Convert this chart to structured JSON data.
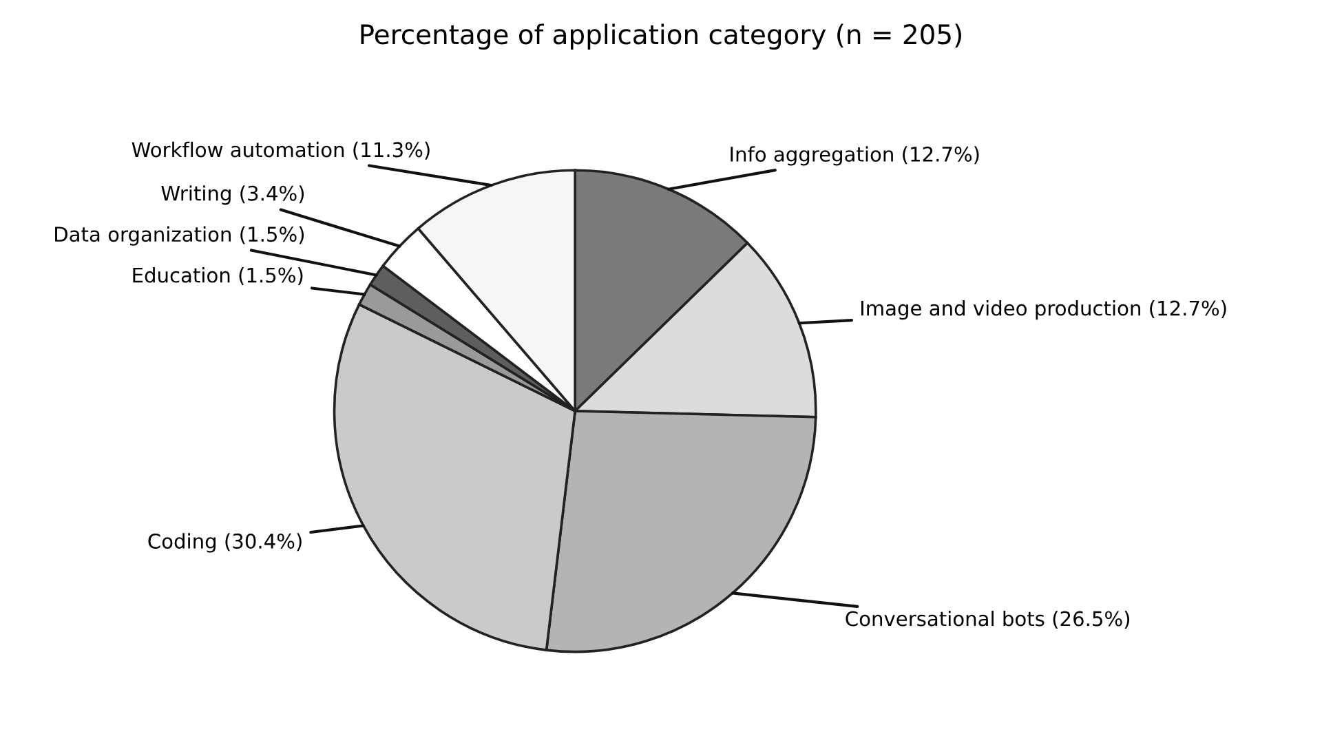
{
  "chart_data": {
    "type": "pie",
    "title": "Percentage of application category (n = 205)",
    "categories": [
      "Info aggregation (12.7%)",
      "Image and video production (12.7%)",
      "Conversational bots (26.5%)",
      "Coding (30.4%)",
      "Education (1.5%)",
      "Data organization (1.5%)",
      "Writing (3.4%)",
      "Workflow automation (11.3%)"
    ],
    "values": [
      12.7,
      12.7,
      26.5,
      30.4,
      1.5,
      1.5,
      3.4,
      11.3
    ],
    "colors": [
      "#7a7a7a",
      "#dcdcdc",
      "#b4b4b4",
      "#cacaca",
      "#9a9a9a",
      "#5e5e5e",
      "#ffffff",
      "#f6f6f6"
    ]
  }
}
